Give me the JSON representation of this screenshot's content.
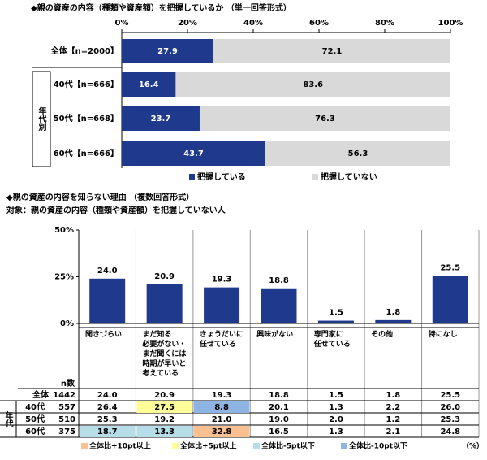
{
  "chart_data": [
    {
      "type": "bar",
      "orientation": "horizontal",
      "stacked": true,
      "title": "◆親の資産の内容（種類や資産額）を把握しているか （単一回答形式）",
      "categories": [
        "全体【n=2000】",
        "40代【n=666】",
        "50代【n=668】",
        "60代【n=666】"
      ],
      "group_label": "年代別",
      "xlim": [
        0,
        100
      ],
      "xticks": [
        {
          "value": 0,
          "label": "0%"
        },
        {
          "value": 20,
          "label": "20%"
        },
        {
          "value": 40,
          "label": "40%"
        },
        {
          "value": 60,
          "label": "60%"
        },
        {
          "value": 80,
          "label": "80%"
        },
        {
          "value": 100,
          "label": "100%"
        }
      ],
      "series": [
        {
          "name": "把握している",
          "color": "#1f3a8c",
          "label_color": "#ffffff",
          "values": [
            27.9,
            16.4,
            23.7,
            43.7
          ]
        },
        {
          "name": "把握していない",
          "color": "#d9d9d9",
          "label_color": "#000000",
          "values": [
            72.1,
            83.6,
            76.3,
            56.3
          ]
        }
      ]
    },
    {
      "type": "bar",
      "title": "◆親の資産の内容を知らない理由 （複数回答形式）",
      "subtitle": "対象：親の資産の内容（種類や資産額）を把握していない人",
      "categories": [
        "聞きづらい",
        "まだ知る\n必要がない・\nまだ聞くには\n時期が早いと\n考えている",
        "きょうだいに\n任せている",
        "興味がない",
        "専門家に\n任せている",
        "その他",
        "特になし"
      ],
      "values": [
        24.0,
        20.9,
        19.3,
        18.8,
        1.5,
        1.8,
        25.5
      ],
      "value_labels": [
        "24.0",
        "20.9",
        "19.3",
        "18.8",
        "1.5",
        "1.8",
        "25.5"
      ],
      "color": "#1f3a8c",
      "ylim": [
        0,
        50
      ],
      "yticks": [
        {
          "value": 0,
          "label": "0%"
        },
        {
          "value": 25,
          "label": "25%"
        },
        {
          "value": 50,
          "label": "50%"
        }
      ]
    }
  ],
  "table": {
    "n_header": "n数",
    "group_label": "年代",
    "rows": [
      {
        "label": "全体",
        "n": "1442",
        "cells": [
          "24.0",
          "20.9",
          "19.3",
          "18.8",
          "1.5",
          "1.8",
          "25.5"
        ],
        "colors": [
          null,
          null,
          null,
          null,
          null,
          null,
          null
        ]
      },
      {
        "label": "40代",
        "n": "557",
        "cells": [
          "26.4",
          "27.5",
          "8.8",
          "20.1",
          "1.3",
          "2.2",
          "26.0"
        ],
        "colors": [
          null,
          "#ffff99",
          "#8db4e2",
          null,
          null,
          null,
          null
        ]
      },
      {
        "label": "50代",
        "n": "510",
        "cells": [
          "25.3",
          "19.2",
          "21.0",
          "19.0",
          "2.0",
          "1.2",
          "25.3"
        ],
        "colors": [
          null,
          null,
          null,
          null,
          null,
          null,
          null
        ]
      },
      {
        "label": "60代",
        "n": "375",
        "cells": [
          "18.7",
          "13.3",
          "32.8",
          "16.5",
          "1.3",
          "2.1",
          "24.8"
        ],
        "colors": [
          "#b7dee8",
          "#b7dee8",
          "#fac090",
          null,
          null,
          null,
          null
        ]
      }
    ],
    "legend": [
      {
        "label": "全体比+10pt以上",
        "color": "#fac090"
      },
      {
        "label": "全体比+5pt以上",
        "color": "#ffff99"
      },
      {
        "label": "全体比-5pt以下",
        "color": "#b7dee8"
      },
      {
        "label": "全体比-10pt以下",
        "color": "#8db4e2"
      }
    ],
    "unit": "（%）"
  }
}
